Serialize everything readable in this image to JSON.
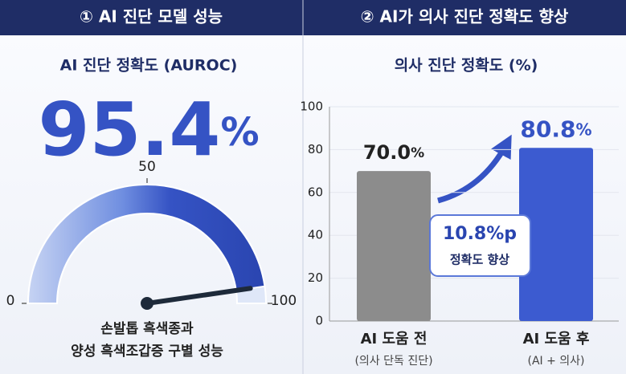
{
  "chart_data": [
    {
      "type": "gauge",
      "header": "① AI 진단 모델 성능",
      "title": "AI 진단 정확도 (AUROC)",
      "value": 95.4,
      "unit": "%",
      "lim": [
        0,
        100
      ],
      "ticks": [
        0,
        50,
        100
      ],
      "color": "#3553c4",
      "caption": [
        "손발톱 흑색종과",
        "양성 흑색조갑증 구별 성능"
      ]
    },
    {
      "type": "bar",
      "header": "② AI가 의사 진단 정확도 향상",
      "title": "의사 진단 정확도 (%)",
      "categories": [
        "AI 도움 전",
        "AI 도움 후"
      ],
      "subcategories": [
        "(의사 단독 진단)",
        "(AI + 의사)"
      ],
      "values": [
        70.0,
        80.8
      ],
      "value_labels": [
        "70.0",
        "80.8"
      ],
      "unit": "%",
      "colors": [
        "#8c8c8c",
        "#3c5bd0"
      ],
      "ylim": [
        0,
        100
      ],
      "yticks": [
        0,
        20,
        40,
        60,
        80,
        100
      ],
      "grid": true,
      "annotation": [
        "10.8%p",
        "정확도 향상"
      ]
    }
  ]
}
